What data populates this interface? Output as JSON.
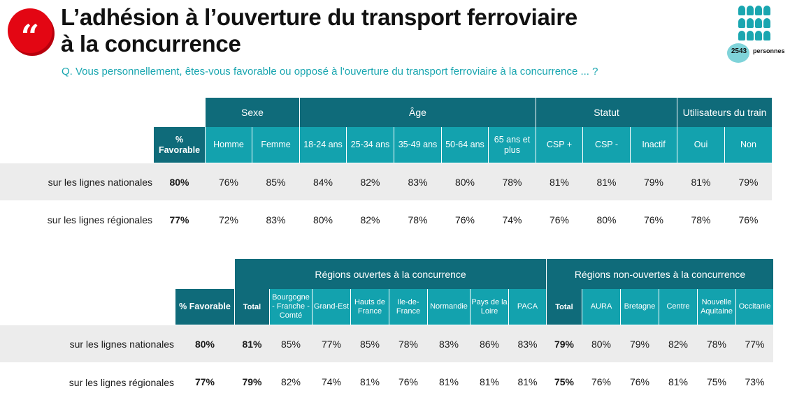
{
  "title_line1": "L’adhésion à l’ouverture du transport ferroviaire",
  "title_line2": "à la concurrence",
  "question": "Q. Vous personnellement, êtes-vous favorable ou opposé à l'ouverture du transport ferroviaire à la concurrence ... ?",
  "logo_glyph": "“",
  "sample": {
    "count": "2543",
    "label": "personnes",
    "icon": "people-group-icon"
  },
  "colors": {
    "header_dark": "#0f6b7a",
    "header_light": "#13a2ae",
    "accent_red": "#e30613",
    "question_teal": "#1aa6b0"
  },
  "table1": {
    "groups": [
      "Sexe",
      "Âge",
      "Statut",
      "Utilisateurs du train"
    ],
    "fav_header": "% Favorable",
    "columns": [
      "Homme",
      "Femme",
      "18-24 ans",
      "25-34 ans",
      "35-49 ans",
      "50-64 ans",
      "65 ans et plus",
      "CSP +",
      "CSP -",
      "Inactif",
      "Oui",
      "Non"
    ],
    "rows": [
      {
        "label": "sur les lignes nationales",
        "fav": "80%",
        "values": [
          "76%",
          "85%",
          "84%",
          "82%",
          "83%",
          "80%",
          "78%",
          "81%",
          "81%",
          "79%",
          "81%",
          "79%"
        ]
      },
      {
        "label": "sur les lignes régionales",
        "fav": "77%",
        "values": [
          "72%",
          "83%",
          "80%",
          "82%",
          "78%",
          "76%",
          "74%",
          "76%",
          "80%",
          "76%",
          "78%",
          "76%"
        ]
      }
    ]
  },
  "table2": {
    "groups": [
      "Régions ouvertes à la concurrence",
      "Régions non-ouvertes à la concurrence"
    ],
    "fav_header": "% Favorable",
    "columns": [
      "Total",
      "Bourgogne - Franche - Comté",
      "Grand-Est",
      "Hauts de France",
      "Ile-de-France",
      "Normandie",
      "Pays de la Loire",
      "PACA",
      "Total",
      "AURA",
      "Bretagne",
      "Centre",
      "Nouvelle Aquitaine",
      "Occitanie"
    ],
    "rows": [
      {
        "label": "sur les lignes nationales",
        "fav": "80%",
        "values": [
          "81%",
          "85%",
          "77%",
          "85%",
          "78%",
          "83%",
          "86%",
          "83%",
          "79%",
          "80%",
          "79%",
          "82%",
          "78%",
          "77%"
        ]
      },
      {
        "label": "sur les lignes régionales",
        "fav": "77%",
        "values": [
          "79%",
          "82%",
          "74%",
          "81%",
          "76%",
          "81%",
          "81%",
          "81%",
          "75%",
          "76%",
          "76%",
          "81%",
          "75%",
          "73%"
        ]
      }
    ]
  }
}
